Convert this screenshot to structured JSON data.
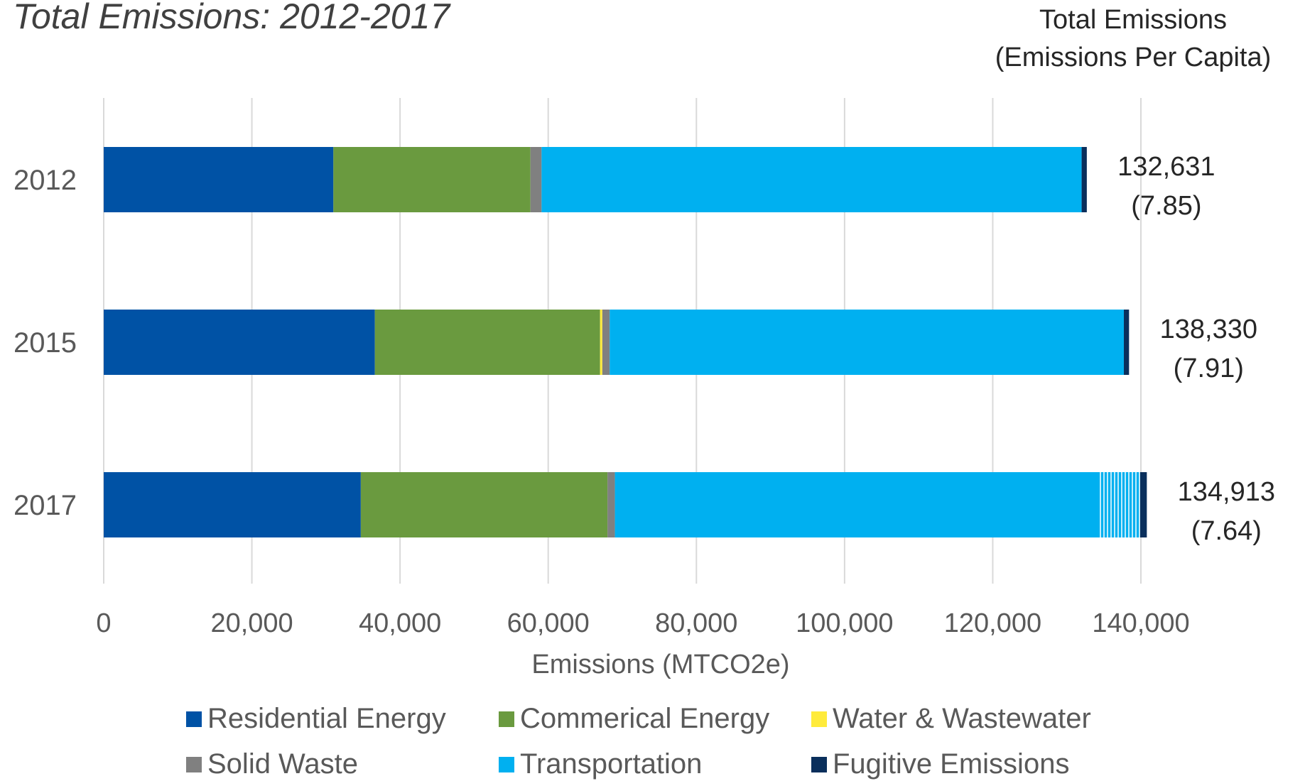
{
  "chart_data": {
    "type": "bar",
    "orientation": "horizontal",
    "stacked": true,
    "title": "Total Emissions: 2012-2017",
    "xlabel": "Emissions (MTCO2e)",
    "ylabel": "",
    "xlim": [
      0,
      140000
    ],
    "x_ticks": [
      "0",
      "20,000",
      "40,000",
      "60,000",
      "80,000",
      "100,000",
      "120,000",
      "140,000"
    ],
    "categories": [
      "2012",
      "2015",
      "2017"
    ],
    "grid": "vertical",
    "legend_position": "bottom",
    "series": [
      {
        "name": "Residential Energy",
        "color": "#0052A5",
        "values": [
          31000,
          36600,
          34700
        ]
      },
      {
        "name": "Commerical Energy",
        "color": "#6A9A3F",
        "values": [
          26600,
          30400,
          33300
        ]
      },
      {
        "name": "Water & Wastewater",
        "color": "#FFEB3B",
        "values": [
          0,
          300,
          0
        ]
      },
      {
        "name": "Solid Waste",
        "color": "#808080",
        "values": [
          1500,
          1000,
          1000
        ]
      },
      {
        "name": "Transportation",
        "color": "#00B0F0",
        "values": [
          72900,
          69400,
          65200
        ],
        "hatched_extra": [
          0,
          0,
          5700
        ]
      },
      {
        "name": "Fugitive Emissions",
        "color": "#0A2F5C",
        "values": [
          700,
          700,
          900
        ]
      }
    ],
    "totals_heading": [
      "Total Emissions",
      "(Emissions Per Capita)"
    ],
    "totals": [
      {
        "total": "132,631",
        "per_capita": "(7.85)"
      },
      {
        "total": "138,330",
        "per_capita": "(7.91)"
      },
      {
        "total": "134,913",
        "per_capita": "(7.64)"
      }
    ]
  }
}
